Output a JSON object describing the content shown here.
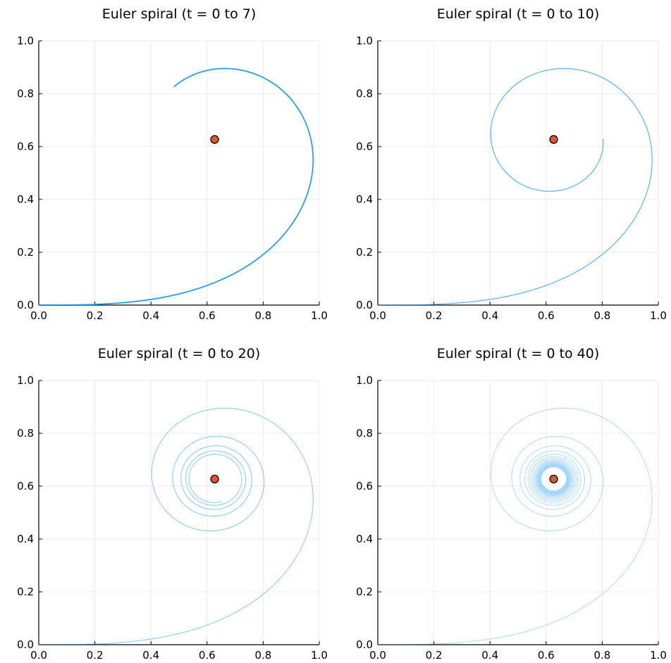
{
  "chart_data": [
    {
      "type": "line",
      "title": "Euler spiral (t = 0 to 7)",
      "t_range": [
        0,
        7
      ],
      "xlim": [
        0.0,
        1.0
      ],
      "ylim": [
        0.0,
        1.0
      ],
      "xticks": [
        "0.0",
        "0.2",
        "0.4",
        "0.6",
        "0.8",
        "1.0"
      ],
      "yticks": [
        "0.0",
        "0.2",
        "0.4",
        "0.6",
        "0.8",
        "1.0"
      ],
      "grid": true,
      "series": [
        {
          "kind": "line",
          "points": "Euler spiral (Fresnel integrals, scaled), t = 0 to 7",
          "color": "#1e9bf0"
        },
        {
          "kind": "point",
          "x": 0.627,
          "y": 0.627,
          "color": "#e2582b"
        }
      ]
    },
    {
      "type": "line",
      "title": "Euler spiral (t = 0 to 10)",
      "t_range": [
        0,
        10
      ],
      "xlim": [
        0.0,
        1.0
      ],
      "ylim": [
        0.0,
        1.0
      ],
      "xticks": [
        "0.0",
        "0.2",
        "0.4",
        "0.6",
        "0.8",
        "1.0"
      ],
      "yticks": [
        "0.0",
        "0.2",
        "0.4",
        "0.6",
        "0.8",
        "1.0"
      ],
      "grid": true,
      "series": [
        {
          "kind": "line",
          "points": "Euler spiral, t = 0 to 10",
          "color": "#1e9bf0"
        },
        {
          "kind": "point",
          "x": 0.627,
          "y": 0.627,
          "color": "#e2582b"
        }
      ]
    },
    {
      "type": "line",
      "title": "Euler spiral (t = 0 to 20)",
      "t_range": [
        0,
        20
      ],
      "xlim": [
        0.0,
        1.0
      ],
      "ylim": [
        0.0,
        1.0
      ],
      "xticks": [
        "0.0",
        "0.2",
        "0.4",
        "0.6",
        "0.8",
        "1.0"
      ],
      "yticks": [
        "0.0",
        "0.2",
        "0.4",
        "0.6",
        "0.8",
        "1.0"
      ],
      "grid": true,
      "series": [
        {
          "kind": "line",
          "points": "Euler spiral, t = 0 to 20",
          "color": "#1e9bf0"
        },
        {
          "kind": "point",
          "x": 0.627,
          "y": 0.627,
          "color": "#e2582b"
        }
      ]
    },
    {
      "type": "line",
      "title": "Euler spiral (t = 0 to 40)",
      "t_range": [
        0,
        40
      ],
      "xlim": [
        0.0,
        1.0
      ],
      "ylim": [
        0.0,
        1.0
      ],
      "xticks": [
        "0.0",
        "0.2",
        "0.4",
        "0.6",
        "0.8",
        "1.0"
      ],
      "yticks": [
        "0.0",
        "0.2",
        "0.4",
        "0.6",
        "0.8",
        "1.0"
      ],
      "grid": true,
      "series": [
        {
          "kind": "line",
          "points": "Euler spiral, t = 0 to 40",
          "color": "#1e9bf0"
        },
        {
          "kind": "point",
          "x": 0.627,
          "y": 0.627,
          "color": "#e2582b"
        }
      ]
    }
  ]
}
